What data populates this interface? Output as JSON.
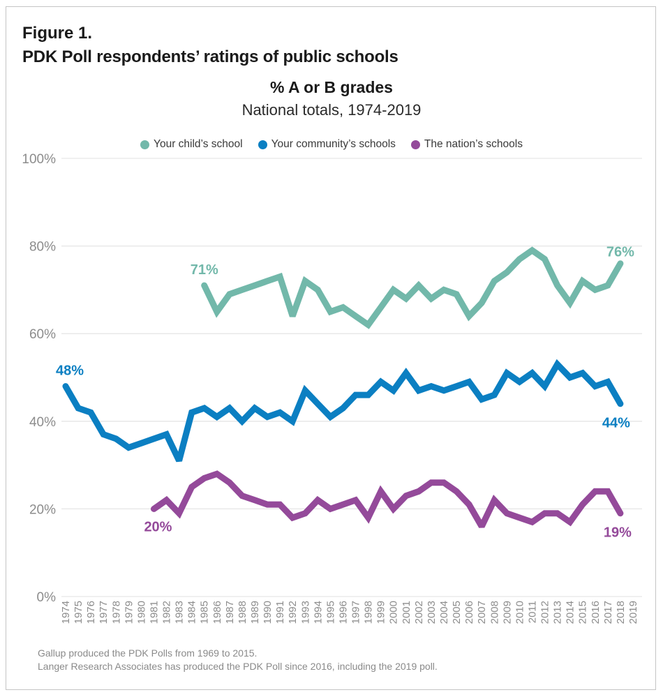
{
  "header": {
    "figure_label": "Figure 1.",
    "figure_title": "PDK Poll respondents’ ratings of public schools"
  },
  "footnotes": [
    "Gallup produced the PDK Polls from 1969 to 2015.",
    "Langer Research Associates has produced the PDK Poll since 2016, including the 2019 poll."
  ],
  "chart_data": {
    "type": "line",
    "title": "% A or B grades",
    "subtitle": "National totals, 1974-2019",
    "xlabel": "",
    "ylabel": "",
    "ylim": [
      0,
      100
    ],
    "y_ticks": [
      0,
      20,
      40,
      60,
      80,
      100
    ],
    "y_tick_labels": [
      "0%",
      "20%",
      "40%",
      "60%",
      "80%",
      "100%"
    ],
    "grid": true,
    "legend_position": "top-center",
    "x": [
      "1974",
      "1975",
      "1976",
      "1977",
      "1978",
      "1979",
      "1980",
      "1981",
      "1982",
      "1983",
      "1984",
      "1985",
      "1986",
      "1987",
      "1988",
      "1989",
      "1990",
      "1991",
      "1992",
      "1993",
      "1994",
      "1995",
      "1996",
      "1997",
      "1998",
      "1999",
      "2000",
      "2001",
      "2002",
      "2003",
      "2004",
      "2005",
      "2006",
      "2007",
      "2008",
      "2009",
      "2010",
      "2011",
      "2012",
      "2013",
      "2014",
      "2015",
      "2016",
      "2017",
      "2018",
      "2019"
    ],
    "series": [
      {
        "name": "Your child’s school",
        "color": "#72b8aa",
        "values": [
          null,
          null,
          null,
          null,
          null,
          null,
          null,
          null,
          null,
          null,
          null,
          71,
          65,
          69,
          70,
          71,
          72,
          73,
          64,
          72,
          70,
          65,
          66,
          64,
          62,
          66,
          70,
          68,
          71,
          68,
          70,
          69,
          64,
          67,
          72,
          74,
          77,
          79,
          77,
          71,
          67,
          72,
          70,
          71,
          76,
          null
        ],
        "labels": [
          {
            "index": 11,
            "text": "71%"
          },
          {
            "index": 44,
            "text": "76%"
          }
        ]
      },
      {
        "name": "Your community’s schools",
        "color": "#0b7fc2",
        "values": [
          48,
          43,
          42,
          37,
          36,
          34,
          35,
          36,
          37,
          31,
          42,
          43,
          41,
          43,
          40,
          43,
          41,
          42,
          40,
          47,
          44,
          41,
          43,
          46,
          46,
          49,
          47,
          51,
          47,
          48,
          47,
          48,
          49,
          45,
          46,
          51,
          49,
          51,
          48,
          53,
          50,
          51,
          48,
          49,
          44,
          null
        ],
        "labels": [
          {
            "index": 0,
            "text": "48%"
          },
          {
            "index": 44,
            "text": "44%"
          }
        ]
      },
      {
        "name": "The nation’s schools",
        "color": "#944a9a",
        "values": [
          null,
          null,
          null,
          null,
          null,
          null,
          null,
          20,
          22,
          19,
          25,
          27,
          28,
          26,
          23,
          22,
          21,
          21,
          18,
          19,
          22,
          20,
          21,
          22,
          18,
          24,
          20,
          23,
          24,
          26,
          26,
          24,
          21,
          16,
          22,
          19,
          18,
          17,
          19,
          19,
          17,
          21,
          24,
          24,
          19,
          null
        ],
        "labels": [
          {
            "index": 7,
            "text": "20%"
          },
          {
            "index": 44,
            "text": "19%"
          }
        ]
      }
    ]
  }
}
